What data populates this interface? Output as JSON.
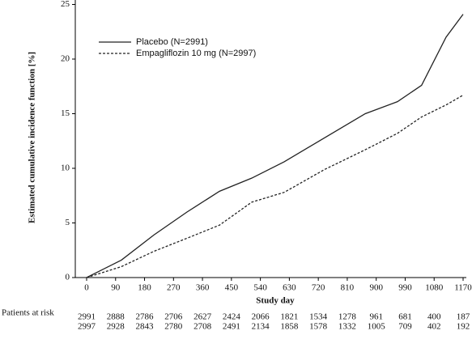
{
  "chart_data": {
    "type": "line",
    "y_label": "Estimated cumulative incidence function [%]",
    "x_label": "Study day",
    "x": [
      0,
      108,
      209,
      312,
      413,
      513,
      614,
      740,
      866,
      966,
      1041,
      1117,
      1170
    ],
    "series": [
      {
        "name": "Placebo (N=2991)",
        "color": "#222222",
        "dash": "solid",
        "values": [
          0,
          1.6,
          3.9,
          6.0,
          7.9,
          9.1,
          10.6,
          12.8,
          15.0,
          16.1,
          17.6,
          22.0,
          24.1
        ]
      },
      {
        "name": "Empagliflozin 10 mg (N=2997)",
        "color": "#222222",
        "dash": "dashed",
        "values": [
          0,
          1.0,
          2.4,
          3.6,
          4.8,
          6.9,
          7.8,
          9.9,
          11.7,
          13.2,
          14.7,
          15.8,
          16.7
        ]
      }
    ],
    "xlim": [
      0,
      1170
    ],
    "xticks": [
      0,
      90,
      180,
      270,
      360,
      450,
      540,
      630,
      720,
      810,
      900,
      990,
      1080,
      1170
    ],
    "ylim": [
      0,
      25
    ],
    "yticks": [
      0,
      5,
      10,
      15,
      20,
      25
    ],
    "risk_table": {
      "title": "Patients at risk",
      "rows": [
        [
          2991,
          2888,
          2786,
          2706,
          2627,
          2424,
          2066,
          1821,
          1534,
          1278,
          961,
          681,
          400,
          187
        ],
        [
          2997,
          2928,
          2843,
          2780,
          2708,
          2491,
          2134,
          1858,
          1578,
          1332,
          1005,
          709,
          402,
          192
        ]
      ]
    }
  }
}
